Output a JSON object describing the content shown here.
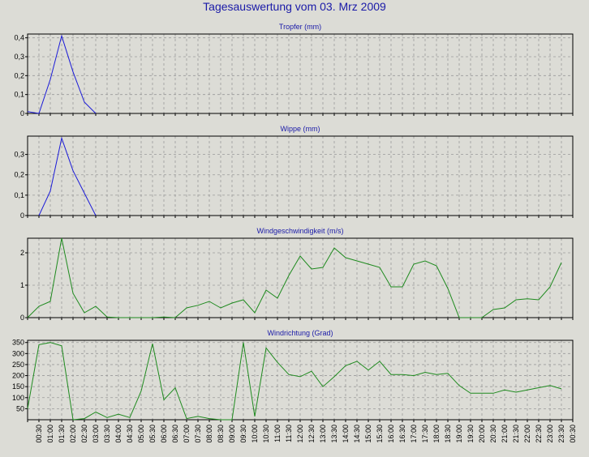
{
  "title": "Tagesauswertung vom 03. Mrz 2009",
  "colors": {
    "background": "#dcdcd6",
    "title": "#1a1aa8",
    "blue_series": "#1a1ad8",
    "green_series": "#1e8a1e",
    "grid": "#9a9a9a"
  },
  "chart_data": [
    {
      "type": "line",
      "title": "Tropfer (mm)",
      "grid": true,
      "ylim": [
        0,
        0.42
      ],
      "yticks": [
        "0",
        "0,1",
        "0,2",
        "0,3",
        "0,4"
      ],
      "ytick_values": [
        0,
        0.1,
        0.2,
        0.3,
        0.4
      ],
      "color": "blue",
      "series": [
        {
          "x": [
            0,
            1,
            2,
            3,
            4,
            5,
            6
          ],
          "values": [
            0.01,
            0.0,
            0.18,
            0.41,
            0.22,
            0.06,
            0.0
          ]
        }
      ]
    },
    {
      "type": "line",
      "title": "Wippe (mm)",
      "grid": true,
      "ylim": [
        0,
        0.39
      ],
      "yticks": [
        "0",
        "0,1",
        "0,2",
        "0,3"
      ],
      "ytick_values": [
        0,
        0.1,
        0.2,
        0.3
      ],
      "color": "blue",
      "series": [
        {
          "x": [
            1,
            2,
            3,
            4,
            5,
            6
          ],
          "values": [
            0.0,
            0.12,
            0.38,
            0.22,
            0.11,
            0.0
          ]
        }
      ]
    },
    {
      "type": "line",
      "title": "Windgeschwindigkeit (m/s)",
      "grid": true,
      "ylim": [
        0,
        2.45
      ],
      "yticks": [
        "0",
        "1",
        "2"
      ],
      "ytick_values": [
        0,
        1,
        2
      ],
      "color": "green",
      "series": [
        {
          "x": [
            0,
            1,
            2,
            3,
            4,
            5,
            6,
            7,
            8,
            9,
            10,
            11,
            12,
            13,
            14,
            15,
            16,
            17,
            18,
            19,
            20,
            21,
            22,
            23,
            24,
            25,
            26,
            27,
            28,
            29,
            30,
            31,
            32,
            33,
            34,
            35,
            36,
            37,
            38,
            39,
            40,
            41,
            42,
            43,
            44,
            45,
            46,
            47
          ],
          "values": [
            0,
            0.35,
            0.5,
            2.45,
            0.75,
            0.15,
            0.35,
            0.02,
            0,
            0,
            0,
            0,
            0.02,
            0,
            0.3,
            0.38,
            0.5,
            0.3,
            0.45,
            0.55,
            0.15,
            0.85,
            0.6,
            1.3,
            1.9,
            1.5,
            1.55,
            2.15,
            1.85,
            1.75,
            1.65,
            1.55,
            0.95,
            0.95,
            1.65,
            1.75,
            1.6,
            0.9,
            0,
            0,
            0,
            0.25,
            0.3,
            0.55,
            0.58,
            0.55,
            0.95,
            1.7
          ]
        }
      ]
    },
    {
      "type": "line",
      "title": "Windrichtung (Grad)",
      "grid": true,
      "ylim": [
        0,
        360
      ],
      "yticks": [
        "50",
        "100",
        "150",
        "200",
        "250",
        "300",
        "350"
      ],
      "ytick_values": [
        50,
        100,
        150,
        200,
        250,
        300,
        350
      ],
      "color": "green",
      "series": [
        {
          "x": [
            0,
            1,
            2,
            3,
            4,
            5,
            6,
            7,
            8,
            9,
            10,
            11,
            12,
            13,
            14,
            15,
            16,
            17,
            18,
            19,
            20,
            21,
            22,
            23,
            24,
            25,
            26,
            27,
            28,
            29,
            30,
            31,
            32,
            33,
            34,
            35,
            36,
            37,
            38,
            39,
            40,
            41,
            42,
            43,
            44,
            45,
            46,
            47
          ],
          "values": [
            50,
            340,
            350,
            335,
            0,
            5,
            35,
            10,
            25,
            10,
            130,
            345,
            90,
            145,
            5,
            15,
            5,
            0,
            0,
            350,
            15,
            325,
            260,
            205,
            195,
            220,
            150,
            195,
            245,
            265,
            225,
            265,
            205,
            205,
            200,
            215,
            205,
            210,
            155,
            120,
            120,
            120,
            135,
            125,
            135,
            145,
            155,
            140
          ]
        }
      ]
    }
  ],
  "x_axis": {
    "ticks": [
      "00:30",
      "01:00",
      "01:30",
      "02:00",
      "02:30",
      "03:00",
      "03:30",
      "04:00",
      "04:30",
      "05:00",
      "05:30",
      "06:00",
      "06:30",
      "07:00",
      "07:30",
      "08:00",
      "08:30",
      "09:00",
      "09:30",
      "10:00",
      "10:30",
      "11:00",
      "11:30",
      "12:00",
      "12:30",
      "13:00",
      "13:30",
      "14:00",
      "14:30",
      "15:00",
      "15:30",
      "16:00",
      "16:30",
      "17:00",
      "17:30",
      "18:00",
      "18:30",
      "19:00",
      "19:30",
      "20:00",
      "20:30",
      "21:00",
      "21:30",
      "22:00",
      "22:30",
      "23:00",
      "23:30",
      "00:30"
    ]
  }
}
